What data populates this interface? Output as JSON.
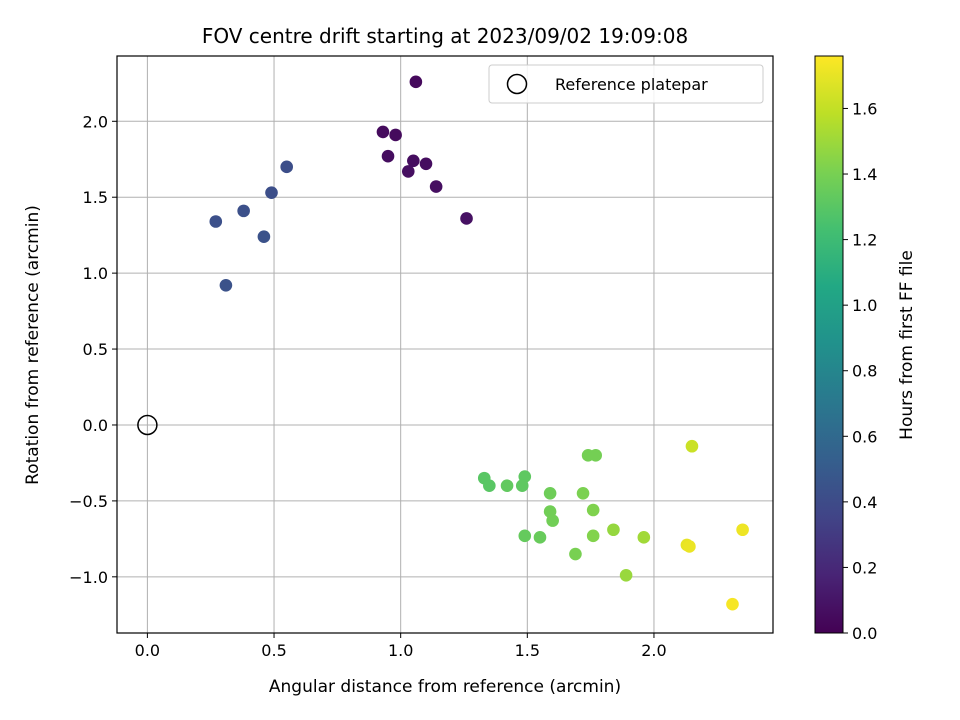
{
  "chart_data": {
    "type": "scatter",
    "title": "FOV centre drift starting at 2023/09/02 19:09:08",
    "xlabel": "Angular distance from reference (arcmin)",
    "ylabel": "Rotation from reference (arcmin)",
    "xlim": [
      -0.12,
      2.47
    ],
    "ylim": [
      -1.37,
      2.43
    ],
    "xticks": [
      0.0,
      0.5,
      1.0,
      1.5,
      2.0
    ],
    "xtick_labels": [
      "0.0",
      "0.5",
      "1.0",
      "1.5",
      "2.0"
    ],
    "yticks": [
      -1.0,
      -0.5,
      0.0,
      0.5,
      1.0,
      1.5,
      2.0
    ],
    "ytick_labels": [
      "−1.0",
      "−0.5",
      "0.0",
      "0.5",
      "1.0",
      "1.5",
      "2.0"
    ],
    "grid": true,
    "legend": {
      "position": "upper right",
      "entries": [
        {
          "label": "Reference platepar",
          "marker": "hollow-circle",
          "x": 0.0,
          "y": 0.0
        }
      ]
    },
    "colorbar": {
      "label": "Hours from first FF file",
      "colormap": "viridis",
      "range": [
        0.0,
        1.76
      ],
      "ticks": [
        0.0,
        0.2,
        0.4,
        0.6,
        0.8,
        1.0,
        1.2,
        1.4,
        1.6
      ],
      "tick_labels": [
        "0.0",
        "0.2",
        "0.4",
        "0.6",
        "0.8",
        "1.0",
        "1.2",
        "1.4",
        "1.6"
      ]
    },
    "points": [
      {
        "x": 1.06,
        "y": 2.26,
        "hours": 0.04
      },
      {
        "x": 0.93,
        "y": 1.93,
        "hours": 0.05
      },
      {
        "x": 0.98,
        "y": 1.91,
        "hours": 0.05
      },
      {
        "x": 0.95,
        "y": 1.77,
        "hours": 0.06
      },
      {
        "x": 1.05,
        "y": 1.74,
        "hours": 0.06
      },
      {
        "x": 1.1,
        "y": 1.72,
        "hours": 0.06
      },
      {
        "x": 1.03,
        "y": 1.67,
        "hours": 0.07
      },
      {
        "x": 1.14,
        "y": 1.57,
        "hours": 0.07
      },
      {
        "x": 1.26,
        "y": 1.36,
        "hours": 0.08
      },
      {
        "x": 0.55,
        "y": 1.7,
        "hours": 0.42
      },
      {
        "x": 0.49,
        "y": 1.53,
        "hours": 0.42
      },
      {
        "x": 0.38,
        "y": 1.41,
        "hours": 0.43
      },
      {
        "x": 0.27,
        "y": 1.34,
        "hours": 0.43
      },
      {
        "x": 0.46,
        "y": 1.24,
        "hours": 0.44
      },
      {
        "x": 0.31,
        "y": 0.92,
        "hours": 0.44
      },
      {
        "x": 1.33,
        "y": -0.35,
        "hours": 1.3
      },
      {
        "x": 1.35,
        "y": -0.4,
        "hours": 1.3
      },
      {
        "x": 1.49,
        "y": -0.34,
        "hours": 1.32
      },
      {
        "x": 1.42,
        "y": -0.4,
        "hours": 1.33
      },
      {
        "x": 1.48,
        "y": -0.4,
        "hours": 1.32
      },
      {
        "x": 1.49,
        "y": -0.73,
        "hours": 1.34
      },
      {
        "x": 1.55,
        "y": -0.74,
        "hours": 1.35
      },
      {
        "x": 1.59,
        "y": -0.45,
        "hours": 1.37
      },
      {
        "x": 1.59,
        "y": -0.57,
        "hours": 1.38
      },
      {
        "x": 1.6,
        "y": -0.63,
        "hours": 1.38
      },
      {
        "x": 1.69,
        "y": -0.85,
        "hours": 1.4
      },
      {
        "x": 1.72,
        "y": -0.45,
        "hours": 1.41
      },
      {
        "x": 1.74,
        "y": -0.2,
        "hours": 1.39
      },
      {
        "x": 1.77,
        "y": -0.2,
        "hours": 1.39
      },
      {
        "x": 1.76,
        "y": -0.56,
        "hours": 1.42
      },
      {
        "x": 1.76,
        "y": -0.73,
        "hours": 1.43
      },
      {
        "x": 1.84,
        "y": -0.69,
        "hours": 1.48
      },
      {
        "x": 1.89,
        "y": -0.99,
        "hours": 1.49
      },
      {
        "x": 1.96,
        "y": -0.74,
        "hours": 1.51
      },
      {
        "x": 2.15,
        "y": -0.14,
        "hours": 1.62
      },
      {
        "x": 2.13,
        "y": -0.79,
        "hours": 1.7
      },
      {
        "x": 2.14,
        "y": -0.8,
        "hours": 1.71
      },
      {
        "x": 2.31,
        "y": -1.18,
        "hours": 1.74
      },
      {
        "x": 2.35,
        "y": -0.69,
        "hours": 1.72
      }
    ]
  }
}
